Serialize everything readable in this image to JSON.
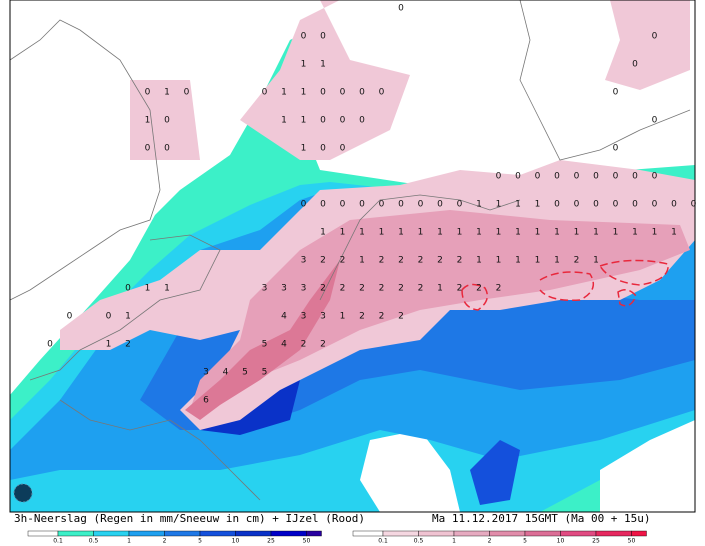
{
  "caption": {
    "left": "3h-Neerslag (Regen in mm/Sneeuw in cm) + IJzel (Rood)",
    "right": "Ma 11.12.2017 15GMT (Ma 00 + 15u)"
  },
  "grid": {
    "rows": [
      [
        null,
        null,
        null,
        null,
        null,
        null,
        null,
        null,
        null,
        null,
        null,
        null,
        null,
        null,
        null,
        null,
        null,
        null,
        "0",
        null,
        null,
        null,
        null,
        null,
        null,
        null,
        null,
        null,
        null,
        null,
        null,
        null,
        null,
        null
      ],
      [
        null,
        null,
        null,
        null,
        null,
        null,
        null,
        null,
        null,
        null,
        null,
        null,
        null,
        "0",
        "0",
        null,
        null,
        null,
        null,
        null,
        null,
        null,
        null,
        null,
        null,
        null,
        null,
        null,
        null,
        null,
        null,
        "0",
        null,
        null
      ],
      [
        null,
        null,
        null,
        null,
        null,
        null,
        null,
        null,
        null,
        null,
        null,
        null,
        null,
        "1",
        "1",
        null,
        null,
        null,
        null,
        null,
        null,
        null,
        null,
        null,
        null,
        null,
        null,
        null,
        null,
        null,
        "0",
        null,
        null,
        null
      ],
      [
        null,
        null,
        null,
        null,
        null,
        "0",
        "1",
        "0",
        null,
        null,
        null,
        "0",
        "1",
        "1",
        "0",
        "0",
        "0",
        "0",
        null,
        null,
        null,
        null,
        null,
        null,
        null,
        null,
        null,
        null,
        null,
        "0",
        null,
        null,
        null,
        null
      ],
      [
        null,
        null,
        null,
        null,
        null,
        "1",
        "0",
        null,
        null,
        null,
        null,
        null,
        "1",
        "1",
        "0",
        "0",
        "0",
        null,
        null,
        null,
        null,
        null,
        null,
        null,
        null,
        null,
        null,
        null,
        null,
        null,
        null,
        "0",
        null,
        null
      ],
      [
        null,
        null,
        null,
        null,
        null,
        "0",
        "0",
        null,
        null,
        null,
        null,
        null,
        null,
        "1",
        "0",
        "0",
        null,
        null,
        null,
        null,
        null,
        null,
        null,
        null,
        null,
        null,
        null,
        null,
        null,
        "0",
        null,
        null,
        null,
        null
      ],
      [
        null,
        null,
        null,
        null,
        null,
        null,
        null,
        null,
        null,
        null,
        null,
        null,
        null,
        null,
        null,
        null,
        null,
        null,
        null,
        null,
        null,
        null,
        null,
        "0",
        "0",
        "0",
        "0",
        "0",
        "0",
        "0",
        "0",
        "0",
        null,
        null
      ],
      [
        null,
        null,
        null,
        null,
        null,
        null,
        null,
        null,
        null,
        null,
        null,
        null,
        null,
        "0",
        "0",
        "0",
        "0",
        "0",
        "0",
        "0",
        "0",
        "0",
        "1",
        "1",
        "1",
        "1",
        "0",
        "0",
        "0",
        "0",
        "0",
        "0",
        "0",
        "0"
      ],
      [
        null,
        null,
        null,
        null,
        null,
        null,
        null,
        null,
        null,
        null,
        null,
        null,
        null,
        null,
        "1",
        "1",
        "1",
        "1",
        "1",
        "1",
        "1",
        "1",
        "1",
        "1",
        "1",
        "1",
        "1",
        "1",
        "1",
        "1",
        "1",
        "1",
        "1",
        null
      ],
      [
        null,
        null,
        null,
        null,
        null,
        null,
        null,
        null,
        null,
        null,
        null,
        null,
        null,
        "3",
        "2",
        "2",
        "1",
        "2",
        "2",
        "2",
        "2",
        "2",
        "1",
        "1",
        "1",
        "1",
        "1",
        "2",
        "1",
        null,
        null,
        null,
        null,
        null
      ],
      [
        null,
        null,
        null,
        null,
        "0",
        "1",
        "1",
        null,
        null,
        null,
        null,
        "3",
        "3",
        "3",
        "2",
        "2",
        "2",
        "2",
        "2",
        "2",
        "1",
        "2",
        "2",
        "2",
        null,
        null,
        null,
        null,
        null,
        null,
        null,
        null,
        null,
        null
      ],
      [
        null,
        "0",
        null,
        "0",
        "1",
        null,
        null,
        null,
        null,
        null,
        null,
        null,
        "4",
        "3",
        "3",
        "1",
        "2",
        "2",
        "2",
        null,
        null,
        null,
        null,
        null,
        null,
        null,
        null,
        null,
        null,
        null,
        null,
        null,
        null,
        null
      ],
      [
        "0",
        null,
        null,
        "1",
        "2",
        null,
        null,
        null,
        null,
        null,
        null,
        "5",
        "4",
        "2",
        "2",
        null,
        null,
        null,
        null,
        null,
        null,
        null,
        null,
        null,
        null,
        null,
        null,
        null,
        null,
        null,
        null,
        null,
        null,
        null
      ],
      [
        null,
        null,
        null,
        null,
        null,
        null,
        null,
        null,
        "3",
        "4",
        "5",
        "5",
        null,
        null,
        null,
        null,
        null,
        null,
        null,
        null,
        null,
        null,
        null,
        null,
        null,
        null,
        null,
        null,
        null,
        null,
        null,
        null,
        null,
        null
      ],
      [
        null,
        null,
        null,
        null,
        null,
        null,
        null,
        null,
        "6",
        null,
        null,
        null,
        null,
        null,
        null,
        null,
        null,
        null,
        null,
        null,
        null,
        null,
        null,
        null,
        null,
        null,
        null,
        null,
        null,
        null,
        null,
        null,
        null,
        null
      ]
    ]
  },
  "legend_rain": {
    "colors": [
      "#ffffff",
      "#3cf0c8",
      "#28d2f0",
      "#1ea0f0",
      "#1e78e6",
      "#1450dc",
      "#0a32c8",
      "#0000c8",
      "#2800a0"
    ],
    "labels": [
      "0.1",
      "0.5",
      "1",
      "2",
      "5",
      "10",
      "25",
      "50"
    ]
  },
  "legend_ice": {
    "colors": [
      "#ffffff",
      "#f5d7e1",
      "#f0c3d2",
      "#e6aac0",
      "#e18caa",
      "#dc6e96",
      "#e14b82",
      "#e6285f",
      "#f01446"
    ],
    "labels": [
      "0.1",
      "0.5",
      "1",
      "2",
      "5",
      "10",
      "25",
      "50"
    ]
  }
}
